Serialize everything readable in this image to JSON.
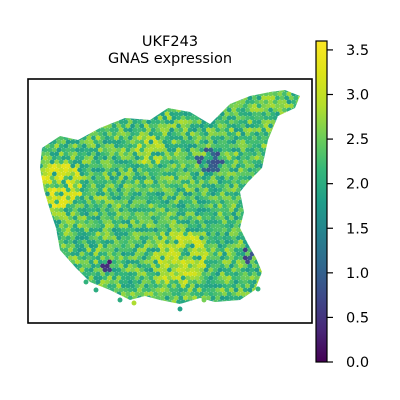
{
  "chart_data": {
    "type": "heatmap",
    "subtype": "spatial-spot-map",
    "title": "UKF243",
    "subtitle": "GNAS expression",
    "colormap": "viridis",
    "colorbar": {
      "range": [
        0.0,
        3.6
      ],
      "ticks": [
        "0.0",
        "0.5",
        "1.0",
        "1.5",
        "2.0",
        "2.5",
        "3.0",
        "3.5"
      ]
    },
    "axes_visible": false,
    "grid": false,
    "legend": "colorbar right",
    "typical_value": 2.3,
    "value_spread": 0.55,
    "high_regions": [
      {
        "where": "left lobe",
        "value": 3.2
      },
      {
        "where": "lower centre",
        "value": 3.0
      },
      {
        "where": "upper centre",
        "value": 2.9
      }
    ],
    "low_regions": [
      {
        "where": "upper-right interior",
        "value": 1.0
      },
      {
        "where": "right edge",
        "value": 0.7
      },
      {
        "where": "lower-left edge",
        "value": 0.4
      }
    ]
  }
}
